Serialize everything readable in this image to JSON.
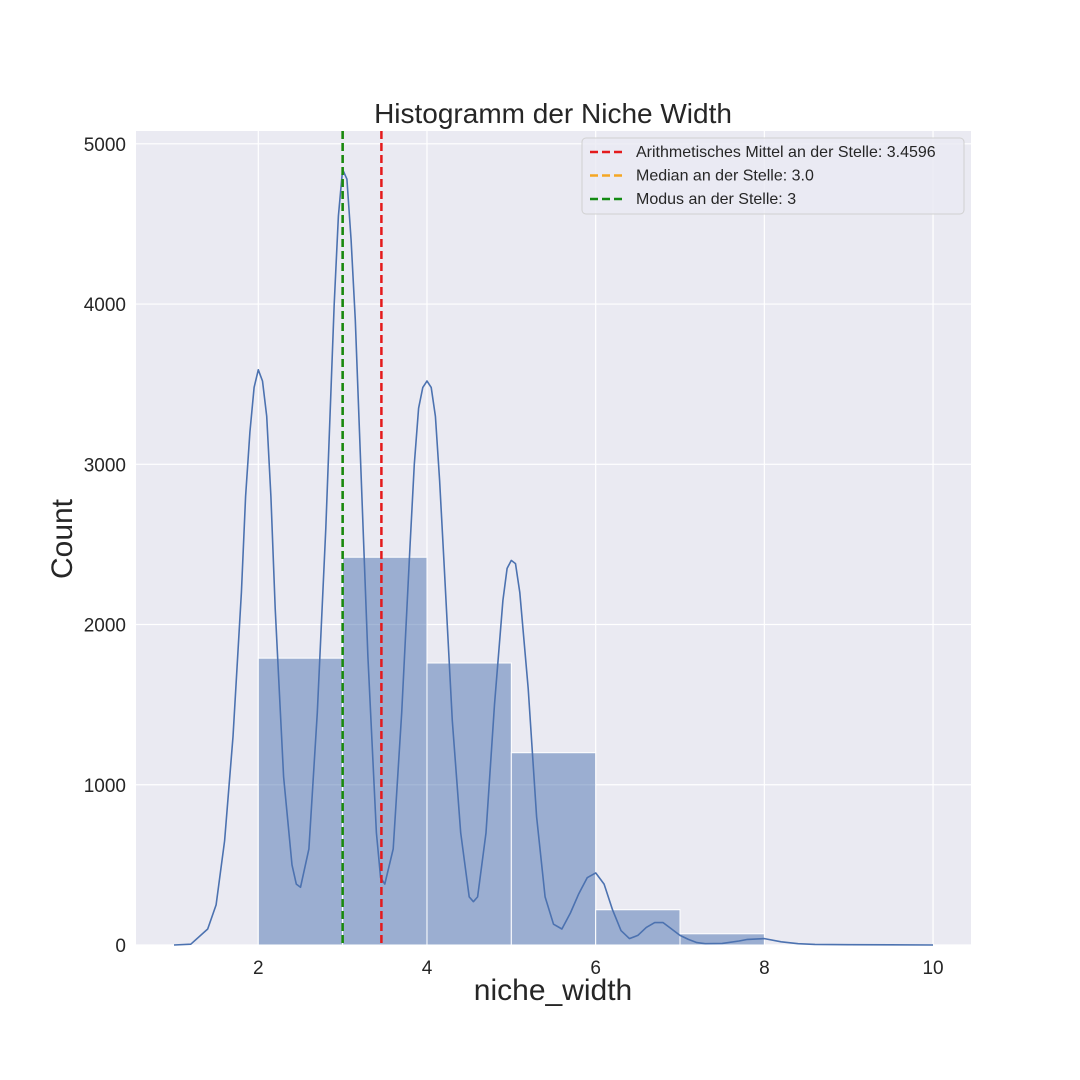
{
  "chart_data": {
    "type": "bar",
    "title": "Histogramm der Niche Width",
    "xlabel": "niche_width",
    "ylabel": "Count",
    "xlim": [
      0.55,
      10.45
    ],
    "ylim": [
      0,
      5080
    ],
    "xticks": [
      2,
      4,
      6,
      8,
      10
    ],
    "yticks": [
      0,
      1000,
      2000,
      3000,
      4000,
      5000
    ],
    "grid": true,
    "legend_position": "upper right",
    "bins": [
      {
        "x0": 2,
        "x1": 3,
        "count": 1790
      },
      {
        "x0": 3,
        "x1": 4,
        "count": 2420
      },
      {
        "x0": 4,
        "x1": 5,
        "count": 1760
      },
      {
        "x0": 5,
        "x1": 6,
        "count": 1200
      },
      {
        "x0": 6,
        "x1": 7,
        "count": 220
      },
      {
        "x0": 7,
        "x1": 8,
        "count": 70
      }
    ],
    "kde": {
      "x": [
        1.0,
        1.2,
        1.4,
        1.5,
        1.6,
        1.7,
        1.8,
        1.85,
        1.9,
        1.95,
        2.0,
        2.05,
        2.1,
        2.15,
        2.2,
        2.3,
        2.4,
        2.45,
        2.5,
        2.6,
        2.7,
        2.8,
        2.85,
        2.9,
        2.95,
        3.0,
        3.05,
        3.1,
        3.15,
        3.2,
        3.3,
        3.4,
        3.45,
        3.5,
        3.6,
        3.7,
        3.8,
        3.85,
        3.9,
        3.95,
        4.0,
        4.05,
        4.1,
        4.15,
        4.2,
        4.3,
        4.4,
        4.5,
        4.55,
        4.6,
        4.7,
        4.8,
        4.9,
        4.95,
        5.0,
        5.05,
        5.1,
        5.2,
        5.3,
        5.4,
        5.5,
        5.6,
        5.7,
        5.8,
        5.9,
        6.0,
        6.1,
        6.2,
        6.3,
        6.4,
        6.5,
        6.6,
        6.7,
        6.8,
        6.9,
        7.0,
        7.1,
        7.2,
        7.3,
        7.5,
        7.7,
        7.8,
        8.0,
        8.2,
        8.4,
        8.6,
        9.0,
        9.5,
        10.0
      ],
      "y": [
        0,
        5,
        100,
        250,
        650,
        1300,
        2200,
        2800,
        3200,
        3480,
        3590,
        3520,
        3300,
        2800,
        2100,
        1050,
        500,
        380,
        360,
        600,
        1450,
        2600,
        3300,
        4000,
        4550,
        4840,
        4780,
        4400,
        3900,
        3200,
        1800,
        700,
        420,
        380,
        600,
        1450,
        2500,
        3000,
        3350,
        3480,
        3520,
        3480,
        3300,
        2900,
        2400,
        1400,
        700,
        300,
        270,
        300,
        700,
        1500,
        2150,
        2350,
        2400,
        2380,
        2200,
        1600,
        800,
        300,
        130,
        100,
        200,
        320,
        420,
        450,
        380,
        220,
        90,
        40,
        60,
        110,
        140,
        140,
        100,
        60,
        35,
        15,
        8,
        10,
        25,
        35,
        40,
        20,
        8,
        4,
        2,
        1,
        0
      ]
    },
    "lines": [
      {
        "label": "Arithmetisches Mittel an der Stelle: 3.4596",
        "x": 3.4596,
        "color": "#e41a1c"
      },
      {
        "label": "Median an der Stelle: 3.0",
        "x": 3.0,
        "color": "#f5a623"
      },
      {
        "label": "Modus an der Stelle: 3",
        "x": 3,
        "color": "#138a13"
      }
    ],
    "colors": {
      "plot_bg": "#eaeaf2",
      "grid": "#ffffff",
      "bar_fill": "#4c72b0",
      "kde": "#4c72b0"
    }
  }
}
